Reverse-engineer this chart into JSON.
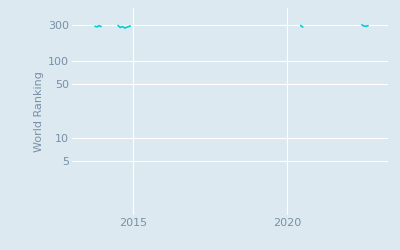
{
  "ylabel": "World Ranking",
  "background_color": "#dce9f0",
  "line_color": "#00d0d0",
  "data_segments": [
    {
      "x": [
        2013.75,
        2013.82,
        2013.88,
        2013.95
      ],
      "y": [
        285,
        280,
        290,
        283
      ]
    },
    {
      "x": [
        2014.5,
        2014.57,
        2014.65,
        2014.72,
        2014.8,
        2014.9
      ],
      "y": [
        292,
        275,
        283,
        270,
        278,
        288
      ]
    },
    {
      "x": [
        2020.45,
        2020.52
      ],
      "y": [
        292,
        278
      ]
    },
    {
      "x": [
        2022.45,
        2022.5,
        2022.58,
        2022.65
      ],
      "y": [
        298,
        288,
        285,
        290
      ]
    }
  ],
  "xlim": [
    2013.0,
    2023.3
  ],
  "ylim_log": [
    1,
    500
  ],
  "yticks": [
    5,
    10,
    50,
    100,
    300
  ],
  "xticks": [
    2015,
    2020
  ],
  "grid_color": "#ffffff",
  "tick_color": "#7a8fa6",
  "figsize": [
    4.0,
    2.5
  ],
  "dpi": 100
}
